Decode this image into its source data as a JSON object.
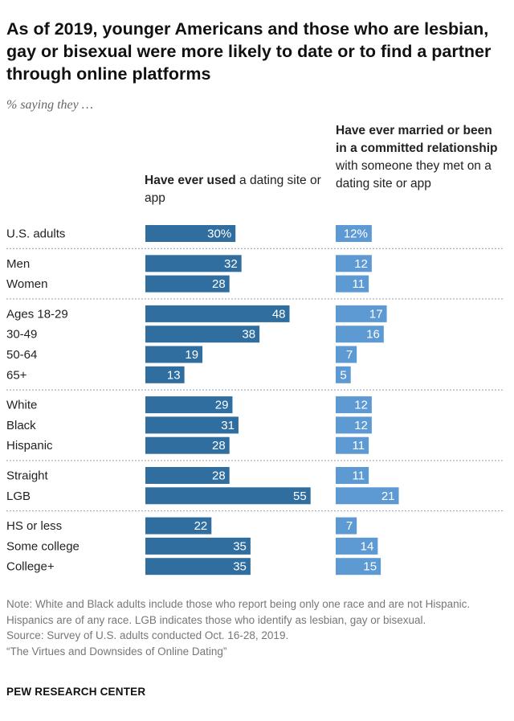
{
  "title": "As of 2019, younger Americans and those who are lesbian, gay or bisexual were more likely to date or to find a partner through online platforms",
  "subtitle": "% saying they …",
  "col1_header": {
    "bold": "Have ever used",
    "rest": " a dating site or app"
  },
  "col2_header": {
    "bold": "Have ever married or been in a committed relationship",
    "rest": " with someone they met on a dating site or app"
  },
  "chart_data": {
    "type": "bar",
    "orientation": "horizontal",
    "categories": [
      "U.S. adults",
      "Men",
      "Women",
      "Ages 18-29",
      "30-49",
      "50-64",
      "65+",
      "White",
      "Black",
      "Hispanic",
      "Straight",
      "LGB",
      "HS or less",
      "Some college",
      "College+"
    ],
    "groups": [
      [
        "U.S. adults"
      ],
      [
        "Men",
        "Women"
      ],
      [
        "Ages 18-29",
        "30-49",
        "50-64",
        "65+"
      ],
      [
        "White",
        "Black",
        "Hispanic"
      ],
      [
        "Straight",
        "LGB"
      ],
      [
        "HS or less",
        "Some college",
        "College+"
      ]
    ],
    "series": [
      {
        "name": "Have ever used a dating site or app",
        "values": [
          30,
          32,
          28,
          48,
          38,
          19,
          13,
          29,
          31,
          28,
          28,
          55,
          22,
          35,
          35
        ],
        "color": "#2f6e9f",
        "first_label": "30%"
      },
      {
        "name": "Have ever married or been in a committed relationship with someone they met on a dating site or app",
        "values": [
          12,
          12,
          11,
          17,
          16,
          7,
          5,
          12,
          12,
          11,
          11,
          21,
          7,
          14,
          15
        ],
        "color": "#5d9ad4",
        "first_label": "12%"
      }
    ],
    "xlabel": "",
    "ylabel": "",
    "xlim": [
      0,
      100
    ]
  },
  "notes": [
    "Note: White and Black adults include those who report being only one race and are not Hispanic. Hispanics are of any race. LGB indicates those who identify as lesbian, gay or bisexual.",
    "Source: Survey of U.S. adults conducted Oct. 16-28, 2019.",
    "“The Virtues and Downsides of Online Dating”"
  ],
  "brand": "PEW RESEARCH CENTER"
}
